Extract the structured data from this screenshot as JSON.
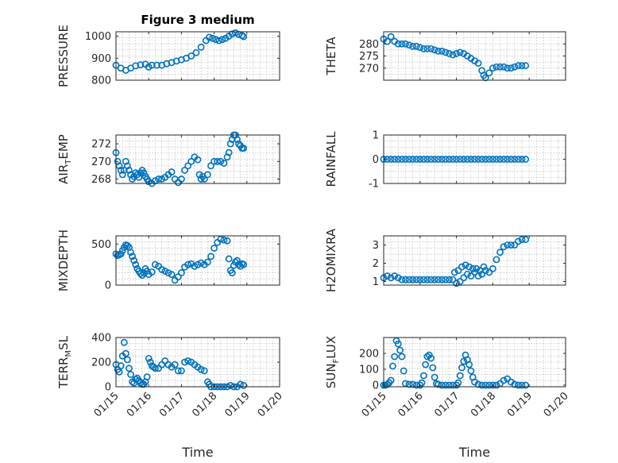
{
  "figure": {
    "title": "Figure 3 medium",
    "x_axis_label": "Time",
    "x_tick_labels": [
      "01/15",
      "01/16",
      "01/17",
      "01/18",
      "01/19",
      "01/20"
    ]
  },
  "colors": {
    "marker": "#0072BD",
    "axes": "#262626",
    "grid": "#bdbdbd"
  },
  "chart_data": [
    {
      "type": "scatter",
      "id": "pressure",
      "ylabel": "PRESSURE",
      "title": "Figure 3 medium",
      "xlim": [
        15,
        20
      ],
      "ylim": [
        800,
        1020
      ],
      "yticks": [
        800,
        900,
        1000
      ],
      "x": [
        15.0,
        15.15,
        15.3,
        15.45,
        15.6,
        15.75,
        15.9,
        16.0,
        16.1,
        16.25,
        16.4,
        16.55,
        16.7,
        16.85,
        17.0,
        17.15,
        17.3,
        17.45,
        17.6,
        17.75,
        17.85,
        17.95,
        18.05,
        18.15,
        18.25,
        18.35,
        18.45,
        18.55,
        18.65,
        18.75,
        18.85,
        18.9
      ],
      "y": [
        868,
        855,
        845,
        855,
        865,
        870,
        873,
        860,
        868,
        868,
        868,
        875,
        880,
        887,
        893,
        900,
        910,
        925,
        950,
        980,
        995,
        990,
        985,
        980,
        985,
        990,
        1000,
        1010,
        1015,
        1008,
        1003,
        998
      ]
    },
    {
      "type": "scatter",
      "id": "theta",
      "ylabel": "THETA",
      "xlim": [
        15,
        20
      ],
      "ylim": [
        265,
        285
      ],
      "yticks": [
        270,
        275,
        280
      ],
      "x": [
        15.0,
        15.1,
        15.2,
        15.3,
        15.4,
        15.5,
        15.6,
        15.7,
        15.8,
        15.9,
        16.0,
        16.1,
        16.2,
        16.3,
        16.4,
        16.5,
        16.6,
        16.7,
        16.8,
        16.9,
        17.0,
        17.1,
        17.2,
        17.3,
        17.4,
        17.5,
        17.6,
        17.7,
        17.75,
        17.8,
        17.9,
        18.0,
        18.1,
        18.2,
        18.3,
        18.4,
        18.5,
        18.6,
        18.7,
        18.8,
        18.9
      ],
      "y": [
        282,
        281,
        283,
        281,
        280,
        280,
        280,
        279.5,
        279,
        279,
        278.5,
        278,
        278,
        278,
        277.5,
        277,
        277,
        276.5,
        276,
        275.5,
        276,
        276.5,
        276,
        275,
        274,
        273,
        272,
        269,
        267,
        266,
        268,
        270,
        270.5,
        270.5,
        270.5,
        270,
        270,
        270.5,
        271,
        271,
        271
      ]
    },
    {
      "type": "scatter",
      "id": "air_temp",
      "ylabel": "AIR_TEMP",
      "ylabel_main": "AIR",
      "ylabel_sub": "T",
      "ylabel_rest": "EMP",
      "xlim": [
        15,
        20
      ],
      "ylim": [
        267.5,
        273
      ],
      "yticks": [
        268,
        270,
        272
      ],
      "x": [
        15.0,
        15.05,
        15.1,
        15.15,
        15.2,
        15.25,
        15.3,
        15.35,
        15.4,
        15.45,
        15.5,
        15.55,
        15.6,
        15.65,
        15.7,
        15.75,
        15.8,
        15.85,
        15.9,
        15.95,
        16.0,
        16.1,
        16.2,
        16.3,
        16.4,
        16.5,
        16.6,
        16.7,
        16.8,
        16.9,
        17.0,
        17.1,
        17.2,
        17.3,
        17.4,
        17.5,
        17.55,
        17.6,
        17.65,
        17.7,
        17.8,
        17.9,
        18.0,
        18.1,
        18.2,
        18.3,
        18.4,
        18.45,
        18.5,
        18.55,
        18.6,
        18.65,
        18.7,
        18.75,
        18.8,
        18.85,
        18.9
      ],
      "y": [
        271,
        270,
        269.5,
        269,
        268.5,
        269,
        270,
        269.5,
        269,
        268.5,
        268,
        268.3,
        268.7,
        268.5,
        268.2,
        268.7,
        269,
        268.7,
        268.3,
        268,
        267.7,
        267.5,
        267.8,
        268,
        268,
        268.2,
        268.5,
        268.8,
        268,
        267.6,
        268,
        269,
        269.5,
        270,
        270.5,
        270.2,
        268.5,
        268,
        268.3,
        268,
        268.5,
        269.5,
        270,
        270,
        270,
        269.8,
        270.5,
        271,
        272,
        272.5,
        273,
        273,
        272.5,
        272,
        271.8,
        271.5,
        271.5
      ]
    },
    {
      "type": "scatter",
      "id": "rainfall",
      "ylabel": "RAINFALL",
      "xlim": [
        15,
        20
      ],
      "ylim": [
        -1,
        1
      ],
      "yticks": [
        -1,
        0,
        1
      ],
      "x": [
        15.0,
        15.1,
        15.2,
        15.3,
        15.4,
        15.5,
        15.6,
        15.7,
        15.8,
        15.9,
        16.0,
        16.1,
        16.2,
        16.3,
        16.4,
        16.5,
        16.6,
        16.7,
        16.8,
        16.9,
        17.0,
        17.1,
        17.2,
        17.3,
        17.4,
        17.5,
        17.6,
        17.7,
        17.8,
        17.9,
        18.0,
        18.1,
        18.2,
        18.3,
        18.4,
        18.5,
        18.6,
        18.7,
        18.8,
        18.9
      ],
      "y": [
        0,
        0,
        0,
        0,
        0,
        0,
        0,
        0,
        0,
        0,
        0,
        0,
        0,
        0,
        0,
        0,
        0,
        0,
        0,
        0,
        0,
        0,
        0,
        0,
        0,
        0,
        0,
        0,
        0,
        0,
        0,
        0,
        0,
        0,
        0,
        0,
        0,
        0,
        0,
        0
      ]
    },
    {
      "type": "scatter",
      "id": "mixdepth",
      "ylabel": "MIXDEPTH",
      "xlim": [
        15,
        20
      ],
      "ylim": [
        0,
        600
      ],
      "yticks": [
        0,
        500
      ],
      "x": [
        15.0,
        15.05,
        15.1,
        15.15,
        15.2,
        15.25,
        15.3,
        15.35,
        15.4,
        15.45,
        15.5,
        15.55,
        15.6,
        15.65,
        15.7,
        15.75,
        15.8,
        15.85,
        15.9,
        15.95,
        16.0,
        16.1,
        16.2,
        16.3,
        16.4,
        16.5,
        16.6,
        16.7,
        16.8,
        16.9,
        17.0,
        17.1,
        17.2,
        17.3,
        17.4,
        17.5,
        17.6,
        17.7,
        17.8,
        17.9,
        18.0,
        18.1,
        18.2,
        18.3,
        18.4,
        18.45,
        18.5,
        18.55,
        18.6,
        18.65,
        18.7,
        18.75,
        18.8,
        18.85,
        18.9
      ],
      "y": [
        380,
        360,
        370,
        380,
        420,
        460,
        490,
        480,
        460,
        400,
        350,
        300,
        250,
        200,
        170,
        140,
        120,
        150,
        200,
        170,
        130,
        160,
        250,
        230,
        190,
        170,
        150,
        130,
        60,
        100,
        150,
        220,
        250,
        260,
        230,
        250,
        270,
        250,
        280,
        350,
        450,
        520,
        560,
        550,
        540,
        320,
        180,
        150,
        240,
        280,
        300,
        250,
        230,
        260,
        250
      ]
    },
    {
      "type": "scatter",
      "id": "h2omixra",
      "ylabel": "H2OMIXRA",
      "xlim": [
        15,
        20
      ],
      "ylim": [
        0.8,
        3.5
      ],
      "yticks": [
        1,
        2,
        3
      ],
      "x": [
        15.0,
        15.1,
        15.2,
        15.3,
        15.4,
        15.5,
        15.6,
        15.7,
        15.8,
        15.9,
        16.0,
        16.1,
        16.2,
        16.3,
        16.4,
        16.5,
        16.6,
        16.7,
        16.8,
        16.9,
        16.95,
        17.0,
        17.05,
        17.1,
        17.15,
        17.2,
        17.25,
        17.3,
        17.35,
        17.4,
        17.45,
        17.5,
        17.55,
        17.6,
        17.65,
        17.7,
        17.75,
        17.8,
        17.9,
        18.0,
        18.1,
        18.2,
        18.3,
        18.4,
        18.5,
        18.6,
        18.7,
        18.8,
        18.9
      ],
      "y": [
        1.2,
        1.3,
        1.2,
        1.3,
        1.2,
        1.1,
        1.1,
        1.1,
        1.1,
        1.1,
        1.1,
        1.1,
        1.1,
        1.1,
        1.1,
        1.1,
        1.1,
        1.1,
        1.1,
        1.1,
        1.5,
        0.9,
        1.6,
        1.0,
        1.8,
        1.2,
        1.9,
        1.4,
        1.8,
        1.3,
        1.7,
        1.5,
        1.7,
        1.3,
        1.6,
        1.4,
        1.8,
        1.6,
        1.5,
        1.7,
        2.2,
        2.6,
        2.9,
        3.0,
        3.0,
        3.0,
        3.2,
        3.3,
        3.3
      ]
    },
    {
      "type": "scatter",
      "id": "terr_msl",
      "ylabel": "TERR_MSL",
      "ylabel_main": "TERR",
      "ylabel_sub": "M",
      "ylabel_rest": "SL",
      "xlim": [
        15,
        20
      ],
      "ylim": [
        0,
        400
      ],
      "yticks": [
        0,
        200,
        400
      ],
      "x": [
        15.0,
        15.05,
        15.1,
        15.15,
        15.2,
        15.25,
        15.3,
        15.35,
        15.4,
        15.45,
        15.5,
        15.55,
        15.6,
        15.65,
        15.7,
        15.75,
        15.8,
        15.85,
        15.9,
        15.95,
        16.0,
        16.05,
        16.1,
        16.15,
        16.2,
        16.3,
        16.4,
        16.5,
        16.6,
        16.7,
        16.8,
        16.9,
        17.0,
        17.1,
        17.2,
        17.3,
        17.4,
        17.5,
        17.6,
        17.7,
        17.8,
        17.85,
        17.9,
        18.0,
        18.1,
        18.2,
        18.3,
        18.4,
        18.5,
        18.6,
        18.7,
        18.8,
        18.9
      ],
      "y": [
        180,
        140,
        120,
        170,
        250,
        360,
        270,
        220,
        150,
        100,
        40,
        30,
        60,
        70,
        50,
        30,
        20,
        20,
        40,
        80,
        230,
        200,
        170,
        160,
        150,
        150,
        180,
        210,
        180,
        160,
        180,
        130,
        130,
        200,
        210,
        200,
        180,
        160,
        140,
        130,
        40,
        20,
        0,
        0,
        0,
        0,
        0,
        0,
        10,
        0,
        0,
        20,
        10
      ]
    },
    {
      "type": "scatter",
      "id": "sun_flux",
      "ylabel": "SUN_FLUX",
      "ylabel_main": "SUN",
      "ylabel_sub": "F",
      "ylabel_rest": "LUX",
      "xlim": [
        15,
        20
      ],
      "ylim": [
        -10,
        300
      ],
      "yticks": [
        0,
        100,
        200
      ],
      "x": [
        15.0,
        15.05,
        15.1,
        15.15,
        15.2,
        15.25,
        15.3,
        15.35,
        15.4,
        15.45,
        15.5,
        15.55,
        15.6,
        15.7,
        15.8,
        15.9,
        16.0,
        16.05,
        16.1,
        16.15,
        16.2,
        16.25,
        16.3,
        16.35,
        16.4,
        16.45,
        16.5,
        16.6,
        16.7,
        16.8,
        16.9,
        17.0,
        17.05,
        17.1,
        17.15,
        17.2,
        17.25,
        17.3,
        17.35,
        17.4,
        17.45,
        17.5,
        17.6,
        17.7,
        17.8,
        17.9,
        18.0,
        18.1,
        18.2,
        18.3,
        18.4,
        18.5,
        18.6,
        18.7,
        18.8,
        18.9
      ],
      "y": [
        0,
        0,
        5,
        15,
        30,
        120,
        180,
        280,
        260,
        220,
        180,
        90,
        10,
        5,
        5,
        0,
        0,
        15,
        60,
        130,
        180,
        190,
        170,
        110,
        50,
        10,
        5,
        0,
        0,
        0,
        0,
        0,
        15,
        60,
        110,
        150,
        190,
        160,
        130,
        90,
        50,
        20,
        5,
        0,
        0,
        0,
        0,
        0,
        10,
        30,
        40,
        20,
        5,
        0,
        0,
        0
      ]
    }
  ]
}
